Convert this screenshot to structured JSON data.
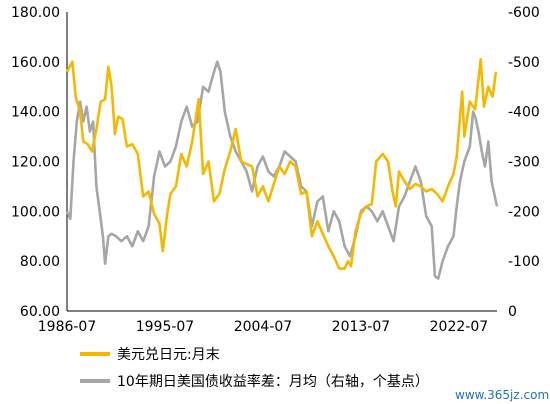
{
  "chart_data": {
    "type": "line",
    "x_ticks": [
      "1986-07",
      "1995-07",
      "2004-07",
      "2013-07",
      "2022-07"
    ],
    "left_axis": {
      "ticks": [
        "180.00",
        "160.00",
        "140.00",
        "120.00",
        "100.00",
        "80.00",
        "60.00"
      ],
      "range": [
        60,
        180
      ]
    },
    "right_axis": {
      "ticks": [
        "-600",
        "-500",
        "-400",
        "-300",
        "-200",
        "-100",
        "0"
      ],
      "range": [
        -600,
        0
      ],
      "inverted": true
    },
    "grid": false,
    "legend_position": "bottom-left",
    "series": [
      {
        "name": "美元兑日元:月末",
        "axis": "left",
        "color": "#F5B800",
        "points": [
          [
            1986.5,
            156
          ],
          [
            1987.0,
            160
          ],
          [
            1987.3,
            146
          ],
          [
            1987.7,
            140
          ],
          [
            1988.0,
            128
          ],
          [
            1988.4,
            127
          ],
          [
            1988.8,
            124
          ],
          [
            1989.2,
            133
          ],
          [
            1989.6,
            144
          ],
          [
            1990.0,
            145
          ],
          [
            1990.3,
            158
          ],
          [
            1990.6,
            150
          ],
          [
            1990.9,
            131
          ],
          [
            1991.2,
            138
          ],
          [
            1991.6,
            137
          ],
          [
            1992.0,
            126
          ],
          [
            1992.5,
            127
          ],
          [
            1993.0,
            123
          ],
          [
            1993.5,
            106
          ],
          [
            1994.0,
            108
          ],
          [
            1994.5,
            99
          ],
          [
            1995.0,
            95
          ],
          [
            1995.3,
            84
          ],
          [
            1995.7,
            99
          ],
          [
            1996.0,
            107
          ],
          [
            1996.5,
            110
          ],
          [
            1997.0,
            123
          ],
          [
            1997.5,
            118
          ],
          [
            1998.0,
            128
          ],
          [
            1998.6,
            145
          ],
          [
            1999.0,
            115
          ],
          [
            1999.5,
            120
          ],
          [
            2000.0,
            104
          ],
          [
            2000.5,
            107
          ],
          [
            2001.0,
            117
          ],
          [
            2001.5,
            124
          ],
          [
            2002.0,
            133
          ],
          [
            2002.5,
            120
          ],
          [
            2003.0,
            119
          ],
          [
            2003.5,
            118
          ],
          [
            2004.0,
            106
          ],
          [
            2004.5,
            110
          ],
          [
            2005.0,
            104
          ],
          [
            2005.5,
            111
          ],
          [
            2006.0,
            118
          ],
          [
            2006.5,
            115
          ],
          [
            2007.0,
            120
          ],
          [
            2007.5,
            118
          ],
          [
            2008.0,
            107
          ],
          [
            2008.5,
            108
          ],
          [
            2009.0,
            90
          ],
          [
            2009.5,
            96
          ],
          [
            2010.0,
            91
          ],
          [
            2010.5,
            86
          ],
          [
            2011.0,
            82
          ],
          [
            2011.5,
            77
          ],
          [
            2012.0,
            77
          ],
          [
            2012.3,
            80
          ],
          [
            2012.6,
            78
          ],
          [
            2013.0,
            92
          ],
          [
            2013.5,
            99
          ],
          [
            2014.0,
            102
          ],
          [
            2014.5,
            103
          ],
          [
            2014.9,
            120
          ],
          [
            2015.5,
            123
          ],
          [
            2016.0,
            120
          ],
          [
            2016.4,
            108
          ],
          [
            2016.7,
            102
          ],
          [
            2017.0,
            116
          ],
          [
            2017.5,
            112
          ],
          [
            2018.0,
            109
          ],
          [
            2018.5,
            111
          ],
          [
            2019.0,
            110
          ],
          [
            2019.5,
            108
          ],
          [
            2020.0,
            109
          ],
          [
            2020.5,
            107
          ],
          [
            2021.0,
            104
          ],
          [
            2021.5,
            110
          ],
          [
            2022.0,
            115
          ],
          [
            2022.3,
            122
          ],
          [
            2022.8,
            148
          ],
          [
            2023.0,
            130
          ],
          [
            2023.5,
            144
          ],
          [
            2024.0,
            141
          ],
          [
            2024.5,
            161
          ],
          [
            2024.8,
            142
          ],
          [
            2025.2,
            150
          ],
          [
            2025.6,
            146
          ],
          [
            2025.9,
            156
          ]
        ]
      },
      {
        "name": "10年期日美国债收益率差：月均（右轴，个基点）",
        "axis": "right",
        "color": "#A6A6A6",
        "points": [
          [
            1986.5,
            -200
          ],
          [
            1986.8,
            -185
          ],
          [
            1987.1,
            -300
          ],
          [
            1987.4,
            -380
          ],
          [
            1987.7,
            -420
          ],
          [
            1988.0,
            -380
          ],
          [
            1988.3,
            -410
          ],
          [
            1988.6,
            -360
          ],
          [
            1988.9,
            -380
          ],
          [
            1989.2,
            -250
          ],
          [
            1989.5,
            -200
          ],
          [
            1989.8,
            -150
          ],
          [
            1990.0,
            -95
          ],
          [
            1990.3,
            -150
          ],
          [
            1990.6,
            -155
          ],
          [
            1991.0,
            -150
          ],
          [
            1991.5,
            -140
          ],
          [
            1992.0,
            -150
          ],
          [
            1992.5,
            -130
          ],
          [
            1993.0,
            -160
          ],
          [
            1993.5,
            -140
          ],
          [
            1994.0,
            -170
          ],
          [
            1994.5,
            -270
          ],
          [
            1995.0,
            -320
          ],
          [
            1995.5,
            -290
          ],
          [
            1996.0,
            -300
          ],
          [
            1996.5,
            -330
          ],
          [
            1997.0,
            -380
          ],
          [
            1997.5,
            -410
          ],
          [
            1998.0,
            -370
          ],
          [
            1998.5,
            -380
          ],
          [
            1999.0,
            -450
          ],
          [
            1999.5,
            -440
          ],
          [
            2000.0,
            -480
          ],
          [
            2000.3,
            -500
          ],
          [
            2000.6,
            -480
          ],
          [
            2001.0,
            -400
          ],
          [
            2001.5,
            -350
          ],
          [
            2002.0,
            -320
          ],
          [
            2002.5,
            -300
          ],
          [
            2003.0,
            -280
          ],
          [
            2003.5,
            -240
          ],
          [
            2004.0,
            -290
          ],
          [
            2004.5,
            -310
          ],
          [
            2005.0,
            -280
          ],
          [
            2005.5,
            -270
          ],
          [
            2006.0,
            -290
          ],
          [
            2006.5,
            -320
          ],
          [
            2007.0,
            -310
          ],
          [
            2007.5,
            -300
          ],
          [
            2008.0,
            -250
          ],
          [
            2008.5,
            -240
          ],
          [
            2009.0,
            -170
          ],
          [
            2009.5,
            -220
          ],
          [
            2010.0,
            -230
          ],
          [
            2010.5,
            -160
          ],
          [
            2011.0,
            -200
          ],
          [
            2011.5,
            -180
          ],
          [
            2012.0,
            -130
          ],
          [
            2012.5,
            -110
          ],
          [
            2013.0,
            -150
          ],
          [
            2013.5,
            -200
          ],
          [
            2014.0,
            -210
          ],
          [
            2014.5,
            -200
          ],
          [
            2015.0,
            -180
          ],
          [
            2015.5,
            -200
          ],
          [
            2016.0,
            -170
          ],
          [
            2016.5,
            -140
          ],
          [
            2017.0,
            -210
          ],
          [
            2017.5,
            -230
          ],
          [
            2018.0,
            -260
          ],
          [
            2018.5,
            -290
          ],
          [
            2019.0,
            -260
          ],
          [
            2019.5,
            -190
          ],
          [
            2020.0,
            -170
          ],
          [
            2020.3,
            -70
          ],
          [
            2020.6,
            -65
          ],
          [
            2021.0,
            -100
          ],
          [
            2021.5,
            -130
          ],
          [
            2022.0,
            -150
          ],
          [
            2022.3,
            -210
          ],
          [
            2022.6,
            -260
          ],
          [
            2023.0,
            -300
          ],
          [
            2023.5,
            -330
          ],
          [
            2023.8,
            -400
          ],
          [
            2024.0,
            -390
          ],
          [
            2024.3,
            -360
          ],
          [
            2024.6,
            -320
          ],
          [
            2024.9,
            -290
          ],
          [
            2025.2,
            -340
          ],
          [
            2025.5,
            -260
          ],
          [
            2025.8,
            -230
          ],
          [
            2026.0,
            -210
          ]
        ]
      }
    ],
    "watermark": "www.365jz.com"
  }
}
